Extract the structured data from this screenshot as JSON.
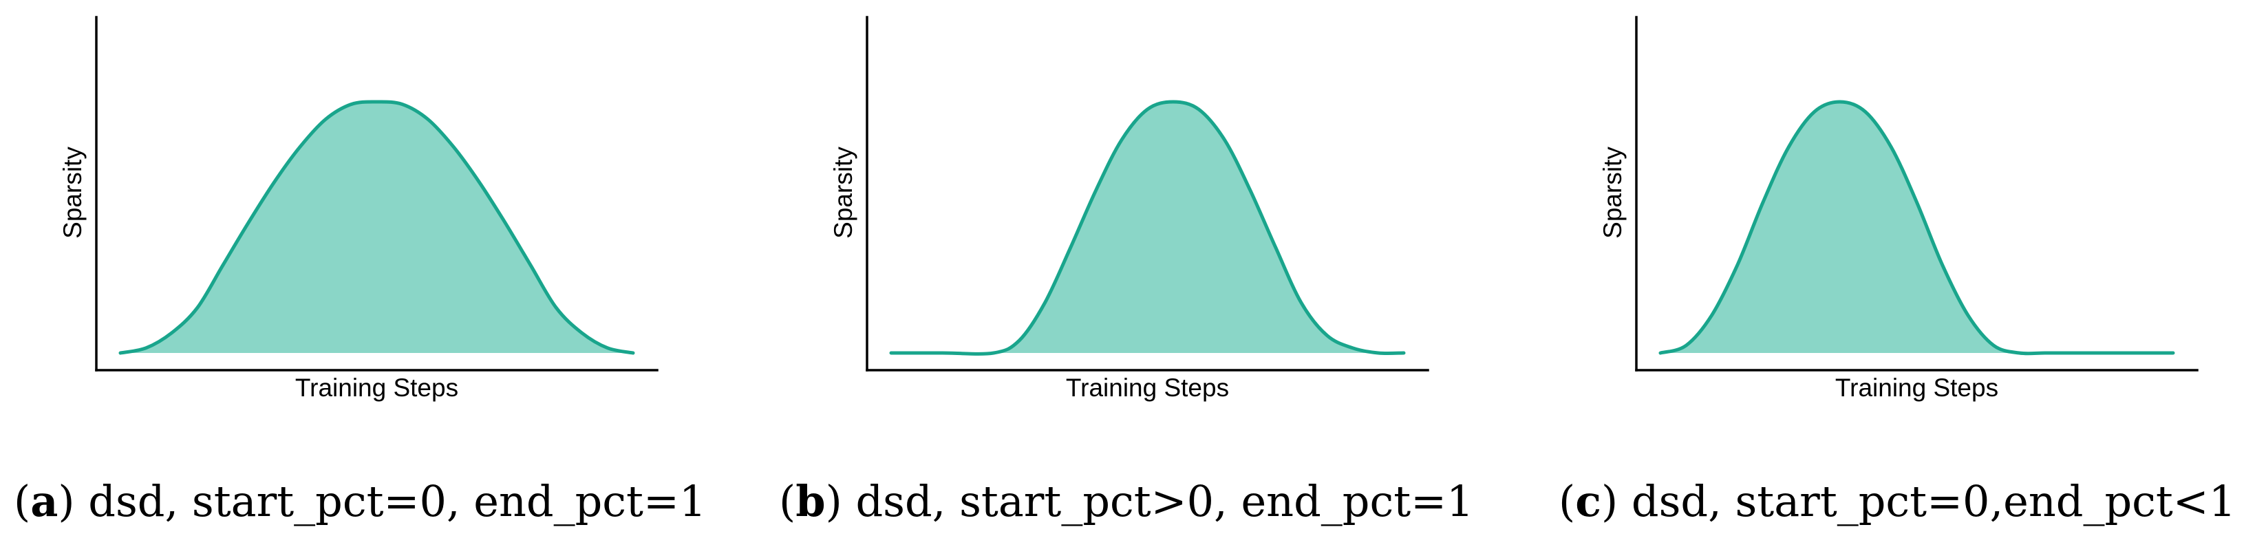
{
  "colors": {
    "line": "#19a58c",
    "fill": "#8ad6c7",
    "axis": "#000000"
  },
  "chart_data": [
    {
      "type": "area",
      "xlabel": "Training Steps",
      "ylabel": "Sparsity",
      "xlim": [
        0,
        1
      ],
      "ylim": [
        0,
        1
      ],
      "x": [
        0.0,
        0.05,
        0.1,
        0.15,
        0.2,
        0.25,
        0.3,
        0.35,
        0.4,
        0.45,
        0.5,
        0.55,
        0.6,
        0.65,
        0.7,
        0.75,
        0.8,
        0.85,
        0.9,
        0.95,
        1.0
      ],
      "y": [
        0.0,
        0.02,
        0.08,
        0.18,
        0.35,
        0.52,
        0.68,
        0.82,
        0.93,
        0.99,
        1.0,
        0.99,
        0.93,
        0.82,
        0.68,
        0.52,
        0.35,
        0.18,
        0.08,
        0.02,
        0.0
      ]
    },
    {
      "type": "area",
      "xlabel": "Training Steps",
      "ylabel": "Sparsity",
      "xlim": [
        0,
        1
      ],
      "ylim": [
        0,
        1
      ],
      "x": [
        0.0,
        0.1,
        0.2,
        0.25,
        0.3,
        0.35,
        0.4,
        0.45,
        0.5,
        0.55,
        0.6,
        0.65,
        0.7,
        0.75,
        0.8,
        0.85,
        0.9,
        0.95,
        1.0
      ],
      "y": [
        0.0,
        0.0,
        0.0,
        0.05,
        0.2,
        0.42,
        0.65,
        0.85,
        0.97,
        1.0,
        0.97,
        0.85,
        0.65,
        0.42,
        0.2,
        0.07,
        0.02,
        0.0,
        0.0
      ]
    },
    {
      "type": "area",
      "xlabel": "Training Steps",
      "ylabel": "Sparsity",
      "xlim": [
        0,
        1
      ],
      "ylim": [
        0,
        1
      ],
      "x": [
        0.0,
        0.05,
        0.1,
        0.15,
        0.2,
        0.25,
        0.3,
        0.35,
        0.4,
        0.45,
        0.5,
        0.55,
        0.6,
        0.65,
        0.7,
        0.75,
        0.8,
        0.85,
        0.9,
        0.95,
        1.0
      ],
      "y": [
        0.0,
        0.03,
        0.15,
        0.35,
        0.6,
        0.82,
        0.96,
        1.0,
        0.96,
        0.82,
        0.6,
        0.35,
        0.15,
        0.03,
        0.0,
        0.0,
        0.0,
        0.0,
        0.0,
        0.0,
        0.0
      ]
    }
  ],
  "captions": [
    {
      "letter": "a",
      "text": " dsd, start_pct=0, end_pct=1"
    },
    {
      "letter": "b",
      "text": " dsd, start_pct>0, end_pct=1"
    },
    {
      "letter": "c",
      "text": " dsd, start_pct=0,end_pct<1"
    }
  ]
}
